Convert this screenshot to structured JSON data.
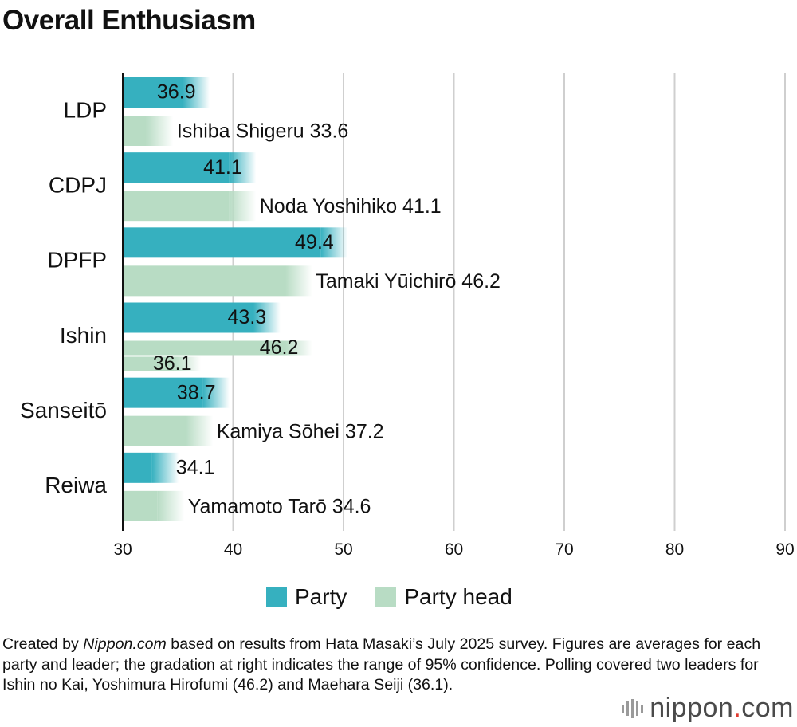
{
  "header": {
    "title": "Overall Enthusiasm"
  },
  "chart_data": {
    "type": "bar",
    "orientation": "horizontal",
    "xlim": [
      30,
      90
    ],
    "xticks": [
      30,
      40,
      50,
      60,
      70,
      80,
      90
    ],
    "grid": true,
    "legend_position": "bottom",
    "series": [
      {
        "name": "Party",
        "color": "#36b0bf"
      },
      {
        "name": "Party head",
        "color": "#b8dcc4"
      }
    ],
    "categories": [
      {
        "label": "LDP",
        "party": 36.9,
        "party_label": "36.9",
        "heads": [
          {
            "value": 33.6,
            "label": "Ishiba Shigeru  33.6"
          }
        ]
      },
      {
        "label": "CDPJ",
        "party": 41.1,
        "party_label": "41.1",
        "heads": [
          {
            "value": 41.1,
            "label": "Noda Yoshihiko  41.1"
          }
        ]
      },
      {
        "label": "DPFP",
        "party": 49.4,
        "party_label": "49.4",
        "heads": [
          {
            "value": 46.2,
            "label": "Tamaki Yūichirō  46.2"
          }
        ]
      },
      {
        "label": "Ishin",
        "party": 43.3,
        "party_label": "43.3",
        "heads": [
          {
            "value": 46.2,
            "label": "46.2"
          },
          {
            "value": 36.1,
            "label": "36.1"
          }
        ]
      },
      {
        "label": "Sanseitō",
        "party": 38.7,
        "party_label": "38.7",
        "heads": [
          {
            "value": 37.2,
            "label": "Kamiya Sōhei  37.2"
          }
        ]
      },
      {
        "label": "Reiwa",
        "party": 34.1,
        "party_label": "34.1",
        "heads": [
          {
            "value": 34.6,
            "label": "Yamamoto Tarō  34.6"
          }
        ]
      }
    ]
  },
  "note": {
    "prefix": "Created by ",
    "source": "Nippon.com",
    "text": " based on results from Hata Masaki’s July 2025 survey. Figures are averages for each party and leader; the gradation at right indicates the range of 95% confidence. Polling covered two leaders for Ishin no Kai, Yoshimura Hirofumi (46.2) and Maehara Seiji (36.1)."
  },
  "logo": {
    "name": "nippon",
    "dot": ".",
    "tld": "com"
  }
}
